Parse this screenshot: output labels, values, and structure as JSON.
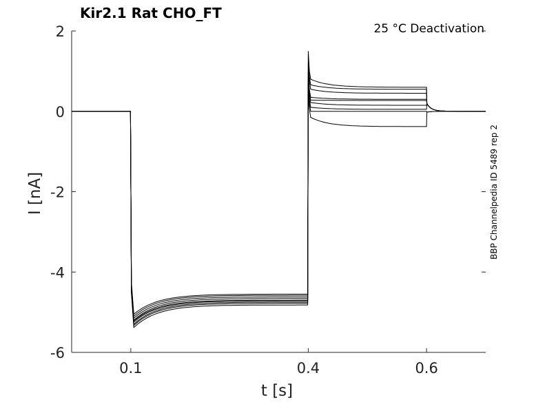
{
  "chart_data": {
    "type": "line",
    "title": "Kir2.1  Rat  CHO_FT",
    "annotation": "25 °C  Deactivation",
    "side_label": "BBP Channelpedia ID 5489 rep 2",
    "xlabel": "t [s]",
    "ylabel": "I [nA]",
    "xlim": [
      0.0,
      0.7
    ],
    "ylim": [
      -6.0,
      2.0
    ],
    "x_ticks": [
      0.1,
      0.4,
      0.6
    ],
    "x_tick_labels": [
      "0.1",
      "0.4",
      "0.6"
    ],
    "y_ticks": [
      2,
      0,
      -2,
      -4,
      -6
    ],
    "y_tick_labels": [
      "2",
      "0",
      "-2",
      "-4",
      "-6"
    ],
    "grid": false,
    "legend": "none",
    "line_color": "#000000",
    "protocol": {
      "holding_current_nA": 0.0,
      "step1_start_s": 0.1,
      "step2_start_s": 0.4,
      "step2_end_s": 0.6,
      "trace_end_s": 0.7
    },
    "series": [
      {
        "step1_peak": -5.05,
        "step1_steady": -4.55,
        "step2_peak": 1.5,
        "step2_start": 0.8,
        "step2_steady": 0.6
      },
      {
        "step1_peak": -5.1,
        "step1_steady": -4.58,
        "step2_peak": 1.2,
        "step2_start": 0.66,
        "step2_steady": 0.55
      },
      {
        "step1_peak": -5.15,
        "step1_steady": -4.62,
        "step2_peak": 1.0,
        "step2_start": 0.55,
        "step2_steady": 0.45
      },
      {
        "step1_peak": -5.2,
        "step1_steady": -4.66,
        "step2_peak": 0.9,
        "step2_start": 0.35,
        "step2_steady": 0.3
      },
      {
        "step1_peak": -5.22,
        "step1_steady": -4.7,
        "step2_peak": 0.8,
        "step2_start": 0.28,
        "step2_steady": 0.27
      },
      {
        "step1_peak": -5.25,
        "step1_steady": -4.72,
        "step2_peak": 0.7,
        "step2_start": 0.22,
        "step2_steady": 0.15
      },
      {
        "step1_peak": -5.3,
        "step1_steady": -4.75,
        "step2_peak": 0.6,
        "step2_start": 0.1,
        "step2_steady": 0.05
      },
      {
        "step1_peak": -5.33,
        "step1_steady": -4.78,
        "step2_peak": 0.5,
        "step2_start": 0.0,
        "step2_steady": 0.0
      },
      {
        "step1_peak": -5.38,
        "step1_steady": -4.82,
        "step2_peak": 0.4,
        "step2_start": -0.15,
        "step2_steady": -0.38
      }
    ]
  }
}
